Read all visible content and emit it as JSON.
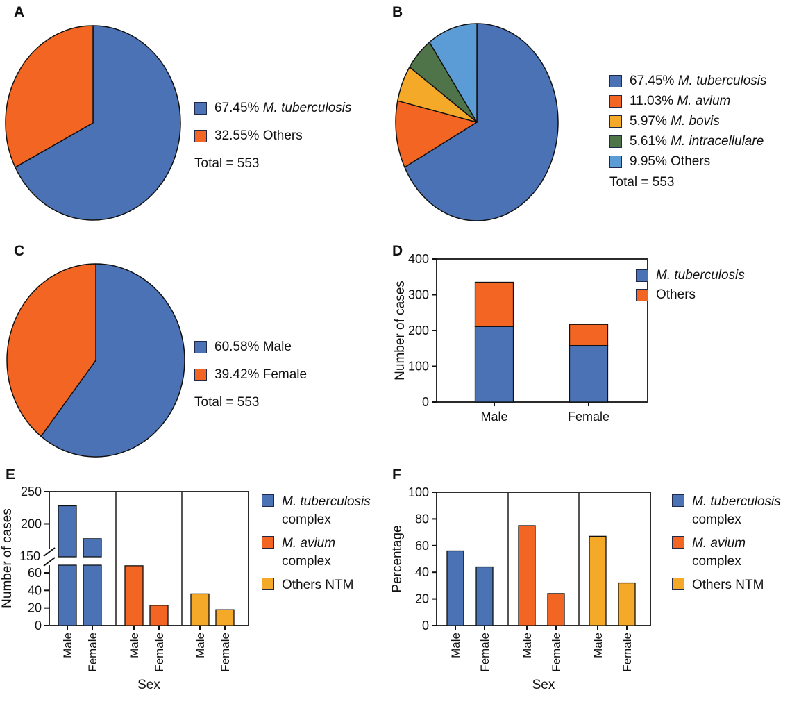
{
  "figure": {
    "background": "#ffffff",
    "panel_letters": [
      "A",
      "B",
      "C",
      "D",
      "E",
      "F"
    ]
  },
  "colors": {
    "blue": "#4A72B4",
    "orange": "#F26522",
    "amber": "#F5A928",
    "green": "#4F7449",
    "light_blue": "#5C9CD6",
    "outline": "#111111",
    "frame": "#2b2b2b"
  },
  "chart_data": [
    {
      "panel": "A",
      "type": "pie",
      "total": "Total = 553",
      "slices": [
        {
          "pct": 67.45,
          "label": "M. tuberculosis",
          "italic": true,
          "color": "#4A72B4"
        },
        {
          "pct": 32.55,
          "label": "Others",
          "italic": false,
          "color": "#F26522"
        }
      ]
    },
    {
      "panel": "B",
      "type": "pie",
      "total": "Total = 553",
      "slices": [
        {
          "pct": 67.45,
          "label": "M. tuberculosis",
          "italic": true,
          "color": "#4A72B4"
        },
        {
          "pct": 11.03,
          "label": "M. avium",
          "italic": true,
          "color": "#F26522"
        },
        {
          "pct": 5.97,
          "label": "M. bovis",
          "italic": true,
          "color": "#F5A928"
        },
        {
          "pct": 5.61,
          "label": "M. intracellulare",
          "italic": true,
          "color": "#4F7449"
        },
        {
          "pct": 9.95,
          "label": "Others",
          "italic": false,
          "color": "#5C9CD6"
        }
      ]
    },
    {
      "panel": "C",
      "type": "pie",
      "total": "Total = 553",
      "slices": [
        {
          "pct": 60.58,
          "label": "Male",
          "italic": false,
          "color": "#4A72B4"
        },
        {
          "pct": 39.42,
          "label": "Female",
          "italic": false,
          "color": "#F26522"
        }
      ]
    },
    {
      "panel": "D",
      "type": "stacked-bar",
      "ylabel": "Number of cases",
      "ymax": 400,
      "yticks": [
        0,
        100,
        200,
        300,
        400
      ],
      "categories": [
        "Male",
        "Female"
      ],
      "series": [
        {
          "name": "M. tuberculosis",
          "italic": true,
          "color": "#4A72B4",
          "values": [
            211,
            158
          ]
        },
        {
          "name": "Others",
          "italic": false,
          "color": "#F26522",
          "values": [
            124,
            59
          ]
        }
      ]
    },
    {
      "panel": "E",
      "type": "grouped-bar-broken-axis",
      "ylabel": "Number of cases",
      "xlabel": "Sex",
      "categories": [
        "Male",
        "Female"
      ],
      "axis_break": {
        "lower_ticks": [
          0,
          20,
          40,
          60
        ],
        "upper_ticks": [
          200,
          250
        ],
        "break_label": 150,
        "lower_max": 60,
        "upper_min": 150,
        "upper_max": 250
      },
      "groups": [
        {
          "name": "M. tuberculosis complex",
          "color": "#4A72B4",
          "values": [
            228,
            177
          ],
          "legend_lines": [
            {
              "text": "M. tuberculosis",
              "italic": true
            },
            {
              "text": "complex",
              "italic": false
            }
          ]
        },
        {
          "name": "M. avium complex",
          "color": "#F26522",
          "values": [
            68,
            23
          ],
          "legend_lines": [
            {
              "text": "M. avium",
              "italic": true
            },
            {
              "text": "complex",
              "italic": false
            }
          ]
        },
        {
          "name": "Others NTM",
          "color": "#F5A928",
          "values": [
            36,
            18
          ],
          "legend_lines": [
            {
              "text": "Others NTM",
              "italic": false
            }
          ]
        }
      ]
    },
    {
      "panel": "F",
      "type": "grouped-bar",
      "ylabel": "Percentage",
      "xlabel": "Sex",
      "ymax": 100,
      "yticks": [
        0,
        20,
        40,
        60,
        80,
        100
      ],
      "categories": [
        "Male",
        "Female"
      ],
      "groups": [
        {
          "name": "M. tuberculosis complex",
          "color": "#4A72B4",
          "values": [
            56,
            44
          ],
          "legend_lines": [
            {
              "text": "M. tuberculosis",
              "italic": true
            },
            {
              "text": "complex",
              "italic": false
            }
          ]
        },
        {
          "name": "M. avium complex",
          "color": "#F26522",
          "values": [
            75,
            24
          ],
          "legend_lines": [
            {
              "text": "M. avium",
              "italic": true
            },
            {
              "text": "complex",
              "italic": false
            }
          ]
        },
        {
          "name": "Others NTM",
          "color": "#F5A928",
          "values": [
            67,
            32
          ],
          "legend_lines": [
            {
              "text": "Others NTM",
              "italic": false
            }
          ]
        }
      ]
    }
  ]
}
